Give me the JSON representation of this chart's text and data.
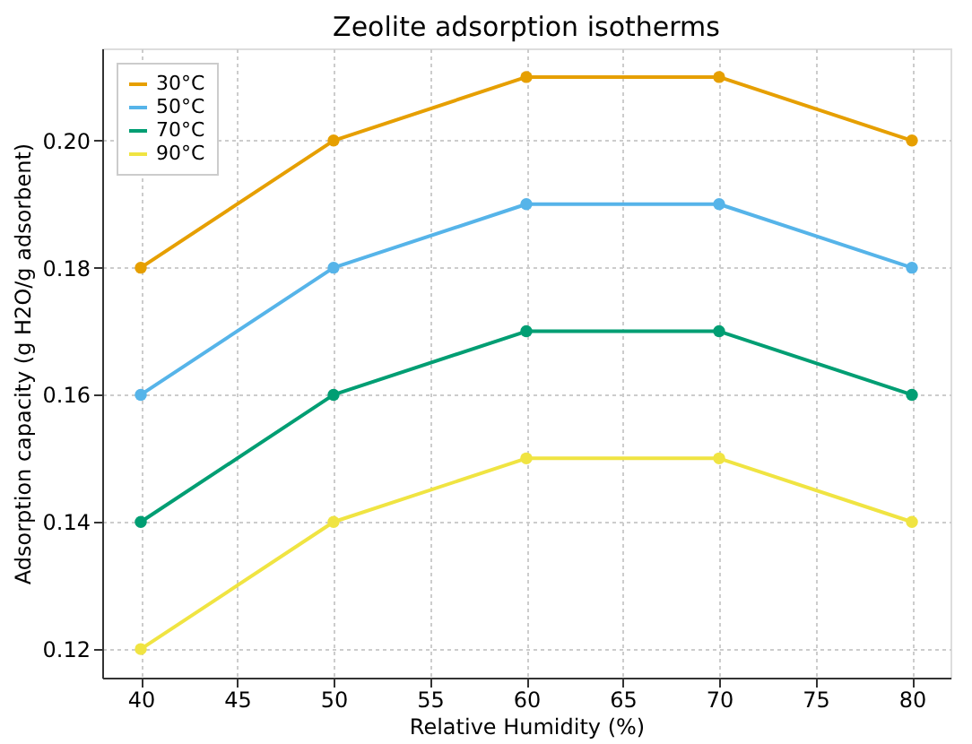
{
  "chart_data": {
    "type": "line",
    "title": "Zeolite adsorption isotherms",
    "xlabel": "Relative Humidity (%)",
    "ylabel": "Adsorption capacity (g H2O/g adsorbent)",
    "x": [
      40,
      50,
      60,
      70,
      80
    ],
    "series": [
      {
        "name": "30°C",
        "color": "#e69f00",
        "values": [
          0.18,
          0.2,
          0.21,
          0.21,
          0.2
        ]
      },
      {
        "name": "50°C",
        "color": "#56b4e9",
        "values": [
          0.16,
          0.18,
          0.19,
          0.19,
          0.18
        ]
      },
      {
        "name": "70°C",
        "color": "#009e73",
        "values": [
          0.14,
          0.16,
          0.17,
          0.17,
          0.16
        ]
      },
      {
        "name": "90°C",
        "color": "#f0e442",
        "values": [
          0.12,
          0.14,
          0.15,
          0.15,
          0.14
        ]
      }
    ],
    "xlim": [
      38,
      82
    ],
    "xticks": [
      40,
      45,
      50,
      55,
      60,
      65,
      70,
      75,
      80
    ],
    "ylim": [
      0.1155,
      0.2145
    ],
    "yticks": [
      {
        "value": 0.12,
        "label": "0.12"
      },
      {
        "value": 0.14,
        "label": "0.14"
      },
      {
        "value": 0.16,
        "label": "0.16"
      },
      {
        "value": 0.18,
        "label": "0.18"
      },
      {
        "value": 0.2,
        "label": "0.20"
      }
    ],
    "grid": true,
    "legend": "top left",
    "marker": "circle",
    "line_style": "solid"
  }
}
